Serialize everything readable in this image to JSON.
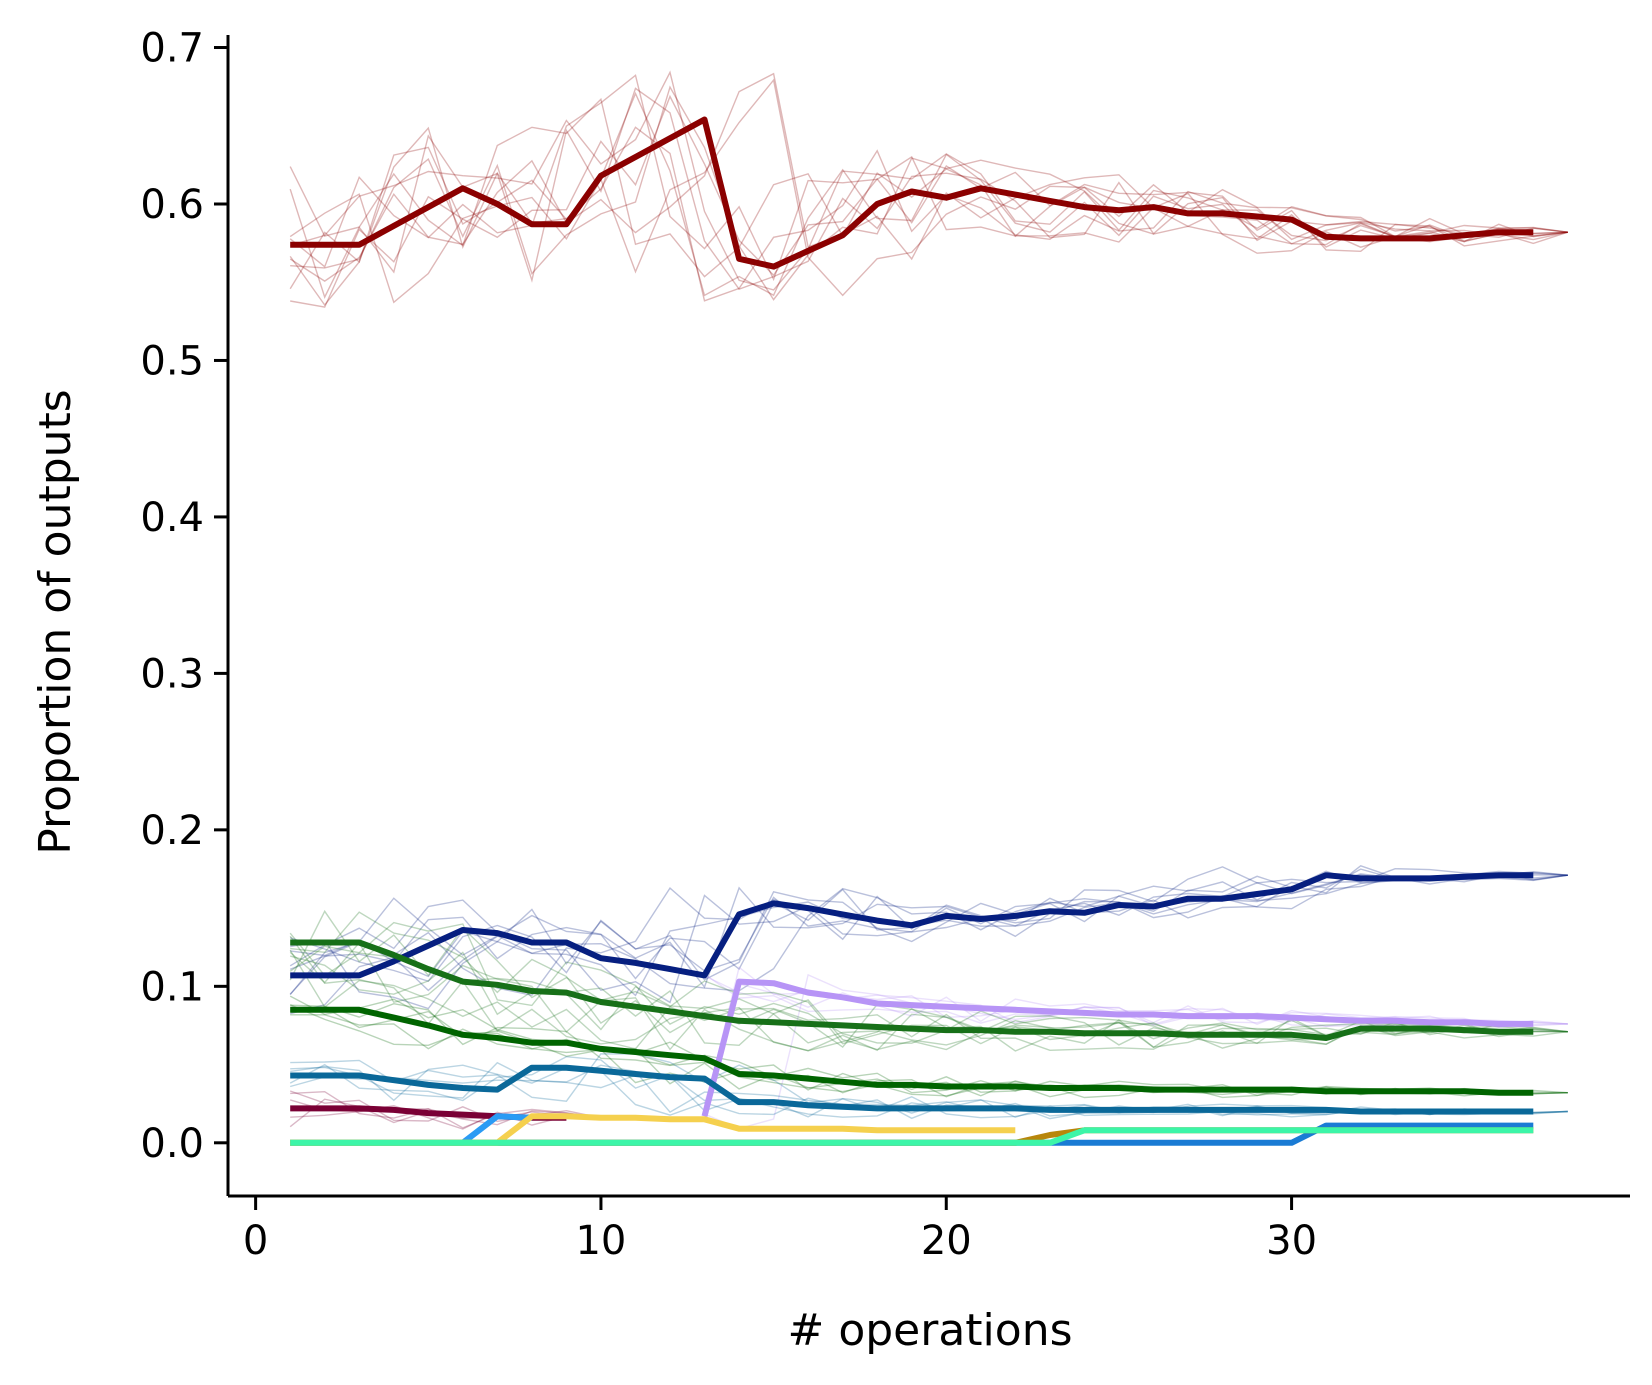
{
  "chart_data": {
    "type": "line",
    "title": "",
    "xlabel": "# operations",
    "ylabel": "Proportion of outputs",
    "xlim": [
      -0.8,
      39.8
    ],
    "ylim": [
      -0.034,
      0.708
    ],
    "x_ticks": [
      0,
      10,
      20,
      30
    ],
    "x_tick_labels": [
      "0",
      "10",
      "20",
      "30"
    ],
    "y_ticks": [
      0.0,
      0.1,
      0.2,
      0.3,
      0.4,
      0.5,
      0.6,
      0.7
    ],
    "y_tick_labels": [
      "0.0",
      "0.1",
      "0.2",
      "0.3",
      "0.4",
      "0.5",
      "0.6",
      "0.7"
    ],
    "grid": false,
    "legend": "none",
    "series": [
      {
        "color": "#8b0000",
        "x": [
          1,
          2,
          3,
          4,
          5,
          6,
          7,
          8,
          9,
          10,
          11,
          12,
          13,
          14,
          15,
          16,
          17,
          18,
          19,
          20,
          21,
          22,
          23,
          24,
          25,
          26,
          27,
          28,
          29,
          30,
          31,
          32,
          33,
          34,
          35,
          36,
          37
        ],
        "values": [
          0.574,
          0.574,
          0.574,
          0.586,
          0.598,
          0.61,
          0.6,
          0.587,
          0.587,
          0.618,
          0.63,
          0.642,
          0.654,
          0.565,
          0.56,
          0.57,
          0.58,
          0.6,
          0.608,
          0.604,
          0.61,
          0.606,
          0.602,
          0.598,
          0.596,
          0.598,
          0.594,
          0.594,
          0.592,
          0.59,
          0.579,
          0.578,
          0.578,
          0.578,
          0.58,
          0.582,
          0.582
        ]
      },
      {
        "color": "#061f80",
        "x": [
          1,
          2,
          3,
          4,
          5,
          6,
          7,
          8,
          9,
          10,
          11,
          12,
          13,
          14,
          15,
          16,
          17,
          18,
          19,
          20,
          21,
          22,
          23,
          24,
          25,
          26,
          27,
          28,
          29,
          30,
          31,
          32,
          33,
          34,
          35,
          36,
          37
        ],
        "values": [
          0.107,
          0.107,
          0.107,
          0.116,
          0.126,
          0.136,
          0.134,
          0.128,
          0.128,
          0.118,
          0.115,
          0.111,
          0.107,
          0.146,
          0.153,
          0.15,
          0.146,
          0.142,
          0.139,
          0.145,
          0.143,
          0.145,
          0.148,
          0.147,
          0.152,
          0.151,
          0.156,
          0.156,
          0.159,
          0.162,
          0.171,
          0.169,
          0.169,
          0.169,
          0.17,
          0.171,
          0.171
        ]
      },
      {
        "color": "#b794f6",
        "x": [
          13,
          14,
          15,
          16,
          17,
          18,
          19,
          20,
          21,
          22,
          23,
          24,
          25,
          26,
          27,
          28,
          29,
          30,
          31,
          32,
          33,
          34,
          35,
          36,
          37
        ],
        "values": [
          0.017,
          0.103,
          0.102,
          0.096,
          0.093,
          0.089,
          0.088,
          0.087,
          0.086,
          0.085,
          0.084,
          0.083,
          0.082,
          0.082,
          0.081,
          0.081,
          0.081,
          0.08,
          0.079,
          0.078,
          0.078,
          0.077,
          0.077,
          0.076,
          0.076
        ]
      },
      {
        "color": "#177018",
        "x": [
          1,
          2,
          3,
          4,
          5,
          6,
          7,
          8,
          9,
          10,
          11,
          12,
          13,
          14,
          15,
          16,
          17,
          18,
          19,
          20,
          21,
          22,
          23,
          24,
          25,
          26,
          27,
          28,
          29,
          30,
          31,
          32,
          33,
          34,
          35,
          36,
          37
        ],
        "values": [
          0.128,
          0.128,
          0.128,
          0.12,
          0.111,
          0.103,
          0.101,
          0.097,
          0.096,
          0.09,
          0.087,
          0.084,
          0.081,
          0.078,
          0.077,
          0.076,
          0.075,
          0.074,
          0.073,
          0.072,
          0.072,
          0.071,
          0.071,
          0.07,
          0.07,
          0.07,
          0.069,
          0.069,
          0.069,
          0.069,
          0.067,
          0.073,
          0.073,
          0.073,
          0.072,
          0.071,
          0.071
        ]
      },
      {
        "color": "#006400",
        "x": [
          1,
          2,
          3,
          4,
          5,
          6,
          7,
          8,
          9,
          10,
          11,
          12,
          13,
          14,
          15,
          16,
          17,
          18,
          19,
          20,
          21,
          22,
          23,
          24,
          25,
          26,
          27,
          28,
          29,
          30,
          31,
          32,
          33,
          34,
          35,
          36,
          37
        ],
        "values": [
          0.085,
          0.085,
          0.085,
          0.08,
          0.075,
          0.069,
          0.067,
          0.064,
          0.064,
          0.06,
          0.058,
          0.056,
          0.054,
          0.044,
          0.043,
          0.041,
          0.039,
          0.037,
          0.037,
          0.036,
          0.036,
          0.036,
          0.035,
          0.035,
          0.035,
          0.034,
          0.034,
          0.034,
          0.034,
          0.034,
          0.033,
          0.033,
          0.033,
          0.033,
          0.033,
          0.032,
          0.032
        ]
      },
      {
        "color": "#0a6899",
        "x": [
          1,
          2,
          3,
          4,
          5,
          6,
          7,
          8,
          9,
          10,
          11,
          12,
          13,
          14,
          15,
          16,
          17,
          18,
          19,
          20,
          21,
          22,
          23,
          24,
          25,
          26,
          27,
          28,
          29,
          30,
          31,
          32,
          33,
          34,
          35,
          36,
          37
        ],
        "values": [
          0.043,
          0.043,
          0.043,
          0.04,
          0.037,
          0.035,
          0.034,
          0.048,
          0.048,
          0.046,
          0.044,
          0.042,
          0.041,
          0.026,
          0.026,
          0.024,
          0.023,
          0.022,
          0.022,
          0.022,
          0.022,
          0.022,
          0.021,
          0.021,
          0.021,
          0.021,
          0.021,
          0.021,
          0.021,
          0.021,
          0.021,
          0.02,
          0.02,
          0.02,
          0.02,
          0.02,
          0.02
        ]
      },
      {
        "color": "#1a7bd4",
        "x": [
          1,
          30,
          31,
          32,
          33,
          34,
          35,
          36,
          37
        ],
        "values": [
          0.0,
          0.0,
          0.011,
          0.011,
          0.011,
          0.011,
          0.011,
          0.011,
          0.011
        ]
      },
      {
        "color": "#7a0035",
        "x": [
          1,
          2,
          3,
          4,
          5,
          6,
          7,
          8,
          9
        ],
        "values": [
          0.022,
          0.022,
          0.022,
          0.021,
          0.019,
          0.018,
          0.017,
          0.016,
          0.016
        ]
      },
      {
        "color": "#2b9bf4",
        "x": [
          1,
          2,
          3,
          4,
          5,
          6,
          7,
          8
        ],
        "values": [
          0.0,
          0.0,
          0.0,
          0.0,
          0.0,
          0.0,
          0.017,
          0.016
        ]
      },
      {
        "color": "#b8860b",
        "x": [
          1,
          22,
          23,
          24,
          25,
          26,
          27,
          28,
          29,
          30,
          31,
          32,
          33,
          34,
          35,
          36,
          37
        ],
        "values": [
          0.0,
          0.0,
          0.005,
          0.008,
          0.008,
          0.008,
          0.008,
          0.008,
          0.008,
          0.008,
          0.008,
          0.008,
          0.008,
          0.008,
          0.008,
          0.008,
          0.008
        ]
      },
      {
        "color": "#f5d04e",
        "x": [
          1,
          7,
          8,
          9,
          10,
          11,
          12,
          13,
          14,
          15,
          16,
          17,
          18,
          19,
          20,
          21,
          22
        ],
        "values": [
          0.0,
          0.0,
          0.017,
          0.017,
          0.016,
          0.016,
          0.015,
          0.015,
          0.009,
          0.009,
          0.009,
          0.009,
          0.008,
          0.008,
          0.008,
          0.008,
          0.008
        ]
      },
      {
        "color": "#3cf5a8",
        "x": [
          1,
          2,
          3,
          4,
          5,
          6,
          7,
          8,
          9,
          10,
          11,
          12,
          13,
          14,
          15,
          16,
          17,
          18,
          19,
          20,
          21,
          22,
          23,
          24,
          25,
          26,
          27,
          28,
          29,
          30,
          31,
          32,
          33,
          34,
          35,
          36,
          37
        ],
        "values": [
          0.0,
          0.0,
          0.0,
          0.0,
          0.0,
          0.0,
          0.0,
          0.0,
          0.0,
          0.0,
          0.0,
          0.0,
          0.0,
          0.0,
          0.0,
          0.0,
          0.0,
          0.0,
          0.0,
          0.0,
          0.0,
          0.0,
          0.0,
          0.008,
          0.008,
          0.008,
          0.008,
          0.008,
          0.008,
          0.008,
          0.008,
          0.008,
          0.008,
          0.008,
          0.008,
          0.008,
          0.008
        ]
      }
    ]
  }
}
